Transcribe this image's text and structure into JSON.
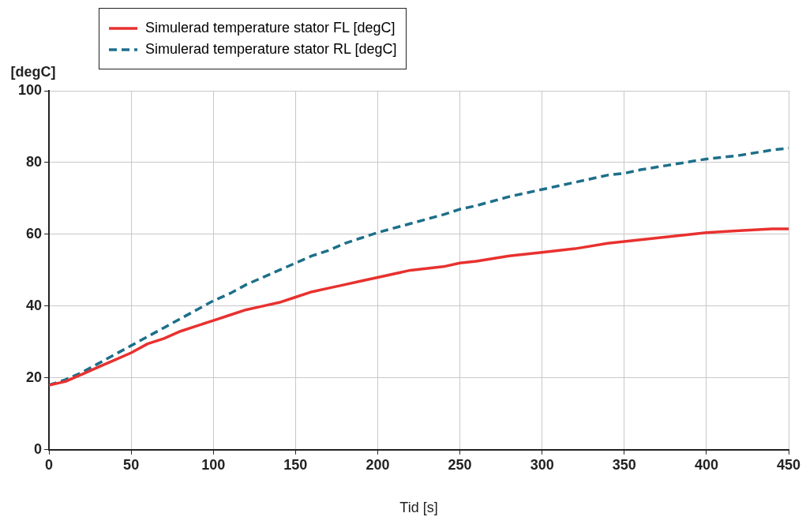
{
  "chart_data": {
    "type": "line",
    "xlabel": "Tid [s]",
    "ylabel": "[degC]",
    "legend": "top left",
    "grid": true,
    "marker": "none",
    "x": [
      0,
      10,
      20,
      30,
      40,
      50,
      60,
      70,
      80,
      90,
      100,
      110,
      120,
      130,
      140,
      150,
      160,
      170,
      180,
      190,
      200,
      220,
      240,
      250,
      260,
      280,
      300,
      320,
      340,
      350,
      360,
      380,
      400,
      420,
      440,
      450
    ],
    "series": [
      {
        "name": "Simulerad temperature stator FL [degC]",
        "color": "#e8312f",
        "line_style": "solid",
        "values": [
          18,
          19,
          21,
          23,
          25,
          27,
          29.5,
          31,
          33,
          34.5,
          36,
          37.5,
          39,
          40,
          41,
          42.5,
          44,
          45,
          46,
          47,
          48,
          50,
          51,
          52,
          52.5,
          54,
          55,
          56,
          57.5,
          58,
          58.5,
          59.5,
          60.5,
          61,
          61.5,
          61.5
        ]
      },
      {
        "name": "Simulerad temperature stator RL [degC]",
        "color": "#1d6f8a",
        "line_style": "dashed",
        "values": [
          18,
          19.5,
          21.5,
          24,
          26.5,
          29,
          31.5,
          34,
          36.5,
          39,
          41.5,
          43.5,
          46,
          48,
          50,
          52,
          54,
          55.5,
          57.5,
          59,
          60.5,
          63,
          65.5,
          67,
          68,
          70.5,
          72.5,
          74.5,
          76.5,
          77,
          78,
          79.5,
          81,
          82,
          83.5,
          84
        ]
      }
    ],
    "xlim": [
      0,
      450
    ],
    "xticks": [
      0,
      50,
      100,
      150,
      200,
      250,
      300,
      350,
      400,
      450
    ],
    "ylim": [
      0,
      100
    ],
    "yticks": [
      0,
      20,
      40,
      60,
      80,
      100
    ]
  }
}
